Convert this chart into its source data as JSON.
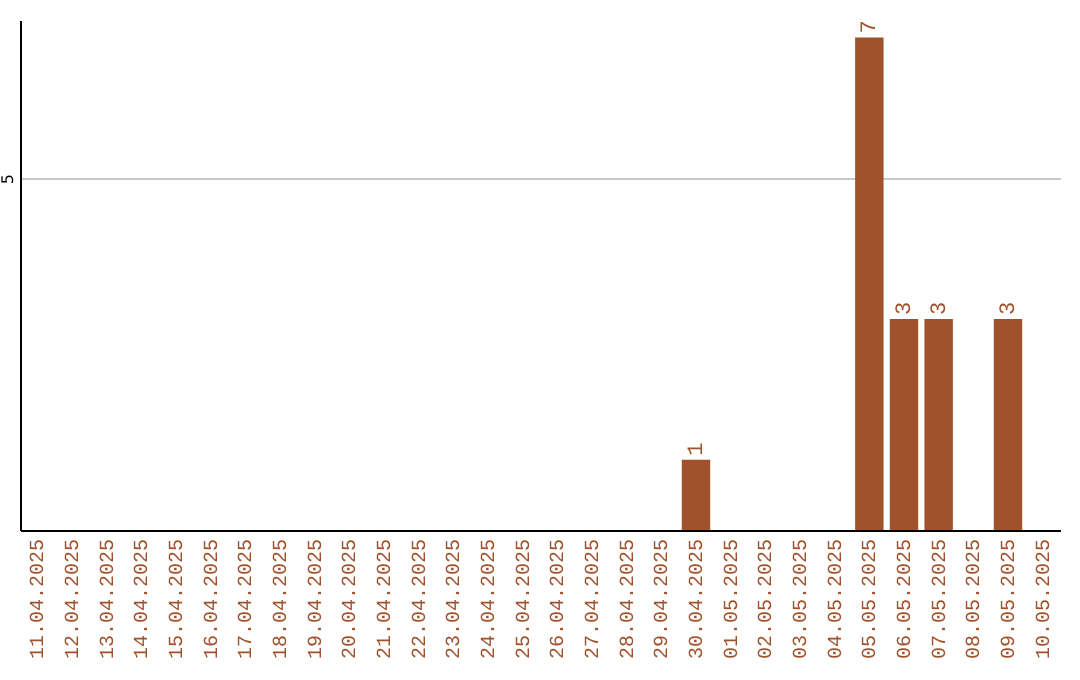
{
  "chart_data": {
    "type": "bar",
    "categories": [
      "11.04.2025",
      "12.04.2025",
      "13.04.2025",
      "14.04.2025",
      "15.04.2025",
      "16.04.2025",
      "17.04.2025",
      "18.04.2025",
      "19.04.2025",
      "20.04.2025",
      "21.04.2025",
      "22.04.2025",
      "23.04.2025",
      "24.04.2025",
      "25.04.2025",
      "26.04.2025",
      "27.04.2025",
      "28.04.2025",
      "29.04.2025",
      "30.04.2025",
      "01.05.2025",
      "02.05.2025",
      "03.05.2025",
      "04.05.2025",
      "05.05.2025",
      "06.05.2025",
      "07.05.2025",
      "08.05.2025",
      "09.05.2025",
      "10.05.2025"
    ],
    "values": [
      null,
      null,
      null,
      null,
      null,
      null,
      null,
      null,
      null,
      null,
      null,
      null,
      null,
      null,
      null,
      null,
      null,
      null,
      null,
      1,
      null,
      null,
      null,
      null,
      7,
      3,
      3,
      null,
      3,
      null
    ],
    "data_labels": true,
    "color": "#a0522d",
    "ylim": [
      0,
      7.25
    ],
    "yticks": [
      5
    ],
    "grid": "y"
  }
}
